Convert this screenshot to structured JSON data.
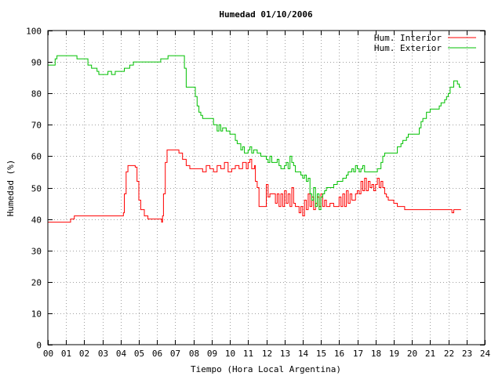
{
  "chart_data": {
    "type": "line",
    "title": "Humedad 01/10/2006",
    "xlabel": "Tiempo (Hora Local Argentina)",
    "ylabel": "Humedad (%)",
    "xlim": [
      0,
      24
    ],
    "ylim": [
      0,
      100
    ],
    "x_ticks": [
      "00",
      "01",
      "02",
      "03",
      "04",
      "05",
      "06",
      "07",
      "08",
      "09",
      "10",
      "11",
      "12",
      "13",
      "14",
      "15",
      "16",
      "17",
      "18",
      "19",
      "20",
      "21",
      "22",
      "23",
      "24"
    ],
    "y_ticks": [
      "0",
      "10",
      "20",
      "30",
      "40",
      "50",
      "60",
      "70",
      "80",
      "90",
      "100"
    ],
    "grid": true,
    "legend_position": "top-right",
    "colors": {
      "interior": "#ff0000",
      "exterior": "#00c000"
    },
    "series": [
      {
        "name": "Hum. Interior",
        "color": "#ff0000",
        "points": [
          [
            0,
            39
          ],
          [
            1.2,
            39
          ],
          [
            1.25,
            40
          ],
          [
            1.4,
            40
          ],
          [
            1.45,
            41
          ],
          [
            2,
            41
          ],
          [
            3,
            41
          ],
          [
            4.1,
            41
          ],
          [
            4.15,
            42
          ],
          [
            4.2,
            48
          ],
          [
            4.3,
            55
          ],
          [
            4.4,
            57
          ],
          [
            4.6,
            57
          ],
          [
            4.8,
            56.5
          ],
          [
            4.9,
            52
          ],
          [
            5.0,
            46
          ],
          [
            5.1,
            43
          ],
          [
            5.3,
            41
          ],
          [
            5.5,
            40
          ],
          [
            6.0,
            40
          ],
          [
            6.2,
            40
          ],
          [
            6.25,
            39
          ],
          [
            6.3,
            41
          ],
          [
            6.35,
            48
          ],
          [
            6.45,
            58
          ],
          [
            6.55,
            62
          ],
          [
            7.0,
            62
          ],
          [
            7.2,
            61
          ],
          [
            7.4,
            59
          ],
          [
            7.6,
            57
          ],
          [
            7.8,
            56
          ],
          [
            8.3,
            56
          ],
          [
            8.5,
            55
          ],
          [
            8.7,
            57
          ],
          [
            8.9,
            56
          ],
          [
            9.1,
            55
          ],
          [
            9.3,
            57
          ],
          [
            9.5,
            56
          ],
          [
            9.7,
            58
          ],
          [
            9.9,
            55
          ],
          [
            10.1,
            56
          ],
          [
            10.3,
            57
          ],
          [
            10.5,
            56
          ],
          [
            10.7,
            58
          ],
          [
            10.9,
            56
          ],
          [
            11.0,
            58
          ],
          [
            11.1,
            59
          ],
          [
            11.2,
            56
          ],
          [
            11.35,
            57
          ],
          [
            11.4,
            52
          ],
          [
            11.5,
            50
          ],
          [
            11.6,
            44
          ],
          [
            11.9,
            44
          ],
          [
            12.0,
            51
          ],
          [
            12.1,
            47
          ],
          [
            12.2,
            48
          ],
          [
            12.4,
            48
          ],
          [
            12.5,
            45
          ],
          [
            12.6,
            48
          ],
          [
            12.7,
            44
          ],
          [
            12.8,
            48
          ],
          [
            12.9,
            44
          ],
          [
            13.0,
            49
          ],
          [
            13.1,
            45
          ],
          [
            13.2,
            48
          ],
          [
            13.3,
            44
          ],
          [
            13.4,
            50
          ],
          [
            13.5,
            45
          ],
          [
            13.6,
            44
          ],
          [
            13.7,
            44
          ],
          [
            13.8,
            42
          ],
          [
            13.9,
            44
          ],
          [
            14.0,
            41
          ],
          [
            14.1,
            46
          ],
          [
            14.2,
            43
          ],
          [
            14.3,
            48
          ],
          [
            14.4,
            44
          ],
          [
            14.5,
            47
          ],
          [
            14.6,
            43
          ],
          [
            14.7,
            45
          ],
          [
            14.8,
            47
          ],
          [
            14.9,
            44
          ],
          [
            15.0,
            48
          ],
          [
            15.1,
            44
          ],
          [
            15.2,
            46
          ],
          [
            15.3,
            44
          ],
          [
            15.5,
            45
          ],
          [
            15.7,
            44
          ],
          [
            15.9,
            44
          ],
          [
            16.0,
            47
          ],
          [
            16.1,
            44
          ],
          [
            16.2,
            48
          ],
          [
            16.3,
            44
          ],
          [
            16.4,
            49
          ],
          [
            16.5,
            45
          ],
          [
            16.6,
            48
          ],
          [
            16.7,
            46
          ],
          [
            16.9,
            48
          ],
          [
            17.0,
            49
          ],
          [
            17.1,
            48
          ],
          [
            17.2,
            52
          ],
          [
            17.3,
            49
          ],
          [
            17.4,
            53
          ],
          [
            17.5,
            49
          ],
          [
            17.6,
            52
          ],
          [
            17.7,
            50
          ],
          [
            17.8,
            51
          ],
          [
            17.9,
            49
          ],
          [
            18.0,
            51
          ],
          [
            18.1,
            53
          ],
          [
            18.2,
            50
          ],
          [
            18.3,
            52
          ],
          [
            18.4,
            50
          ],
          [
            18.5,
            48
          ],
          [
            18.6,
            47
          ],
          [
            18.7,
            46
          ],
          [
            18.9,
            46
          ],
          [
            19.0,
            45
          ],
          [
            19.2,
            44
          ],
          [
            19.5,
            44
          ],
          [
            19.6,
            43
          ],
          [
            20.0,
            43
          ],
          [
            21,
            43
          ],
          [
            22,
            43
          ],
          [
            22.2,
            42
          ],
          [
            22.3,
            43
          ],
          [
            22.7,
            43
          ]
        ]
      },
      {
        "name": "Hum. Exterior",
        "color": "#00c000",
        "points": [
          [
            0,
            89
          ],
          [
            0.3,
            89
          ],
          [
            0.4,
            91
          ],
          [
            0.5,
            92
          ],
          [
            1.0,
            92
          ],
          [
            1.5,
            92
          ],
          [
            1.6,
            91
          ],
          [
            2.0,
            91
          ],
          [
            2.2,
            89
          ],
          [
            2.4,
            88
          ],
          [
            2.6,
            88
          ],
          [
            2.7,
            87
          ],
          [
            2.8,
            86
          ],
          [
            3.0,
            86
          ],
          [
            3.2,
            86
          ],
          [
            3.3,
            87
          ],
          [
            3.5,
            86
          ],
          [
            3.7,
            87
          ],
          [
            4.0,
            87
          ],
          [
            4.1,
            87
          ],
          [
            4.2,
            88
          ],
          [
            4.5,
            89
          ],
          [
            4.7,
            90
          ],
          [
            5.0,
            90
          ],
          [
            5.5,
            90
          ],
          [
            6.0,
            90
          ],
          [
            6.2,
            91
          ],
          [
            6.5,
            91
          ],
          [
            6.6,
            92
          ],
          [
            7.0,
            92
          ],
          [
            7.4,
            92
          ],
          [
            7.5,
            88
          ],
          [
            7.6,
            82
          ],
          [
            8.0,
            82
          ],
          [
            8.1,
            79
          ],
          [
            8.2,
            76
          ],
          [
            8.3,
            74
          ],
          [
            8.4,
            73
          ],
          [
            8.5,
            72
          ],
          [
            9.0,
            72
          ],
          [
            9.1,
            70
          ],
          [
            9.2,
            70
          ],
          [
            9.3,
            68
          ],
          [
            9.4,
            70
          ],
          [
            9.5,
            68
          ],
          [
            9.6,
            69
          ],
          [
            9.8,
            68
          ],
          [
            10.0,
            67
          ],
          [
            10.2,
            67
          ],
          [
            10.3,
            65
          ],
          [
            10.4,
            64
          ],
          [
            10.5,
            64
          ],
          [
            10.6,
            62
          ],
          [
            10.7,
            63
          ],
          [
            10.8,
            61
          ],
          [
            11.0,
            62
          ],
          [
            11.1,
            63
          ],
          [
            11.2,
            61
          ],
          [
            11.3,
            62
          ],
          [
            11.5,
            61
          ],
          [
            11.7,
            60
          ],
          [
            11.8,
            60
          ],
          [
            12.0,
            59
          ],
          [
            12.1,
            58
          ],
          [
            12.2,
            60
          ],
          [
            12.3,
            58
          ],
          [
            12.5,
            58
          ],
          [
            12.6,
            59
          ],
          [
            12.7,
            57
          ],
          [
            12.8,
            56
          ],
          [
            12.9,
            56
          ],
          [
            13.0,
            57
          ],
          [
            13.1,
            58
          ],
          [
            13.2,
            56
          ],
          [
            13.3,
            60
          ],
          [
            13.4,
            58
          ],
          [
            13.5,
            57
          ],
          [
            13.6,
            55
          ],
          [
            13.8,
            55
          ],
          [
            13.9,
            54
          ],
          [
            14.0,
            53
          ],
          [
            14.1,
            54
          ],
          [
            14.2,
            52
          ],
          [
            14.3,
            53
          ],
          [
            14.4,
            48
          ],
          [
            14.5,
            46
          ],
          [
            14.6,
            50
          ],
          [
            14.7,
            44
          ],
          [
            14.8,
            48
          ],
          [
            14.9,
            43
          ],
          [
            15.0,
            47
          ],
          [
            15.1,
            48
          ],
          [
            15.2,
            49
          ],
          [
            15.3,
            50
          ],
          [
            15.5,
            50
          ],
          [
            15.7,
            51
          ],
          [
            15.9,
            52
          ],
          [
            16.0,
            52
          ],
          [
            16.2,
            53
          ],
          [
            16.4,
            54
          ],
          [
            16.5,
            55
          ],
          [
            16.7,
            56
          ],
          [
            16.8,
            55
          ],
          [
            16.9,
            57
          ],
          [
            17.0,
            56
          ],
          [
            17.1,
            55
          ],
          [
            17.2,
            56
          ],
          [
            17.3,
            57
          ],
          [
            17.4,
            55
          ],
          [
            17.6,
            55
          ],
          [
            17.8,
            55
          ],
          [
            18.0,
            55
          ],
          [
            18.1,
            56
          ],
          [
            18.3,
            58
          ],
          [
            18.4,
            60
          ],
          [
            18.5,
            61
          ],
          [
            19.0,
            61
          ],
          [
            19.2,
            63
          ],
          [
            19.4,
            64
          ],
          [
            19.5,
            65
          ],
          [
            19.7,
            66
          ],
          [
            19.8,
            67
          ],
          [
            20.0,
            67
          ],
          [
            20.3,
            67
          ],
          [
            20.4,
            69
          ],
          [
            20.5,
            71
          ],
          [
            20.6,
            72
          ],
          [
            20.8,
            74
          ],
          [
            21.0,
            75
          ],
          [
            21.3,
            75
          ],
          [
            21.5,
            76
          ],
          [
            21.6,
            77
          ],
          [
            21.8,
            78
          ],
          [
            21.9,
            79
          ],
          [
            22.0,
            80
          ],
          [
            22.1,
            82
          ],
          [
            22.2,
            82
          ],
          [
            22.3,
            84
          ],
          [
            22.4,
            84
          ],
          [
            22.5,
            83
          ],
          [
            22.6,
            82
          ],
          [
            22.7,
            82
          ]
        ]
      }
    ]
  }
}
